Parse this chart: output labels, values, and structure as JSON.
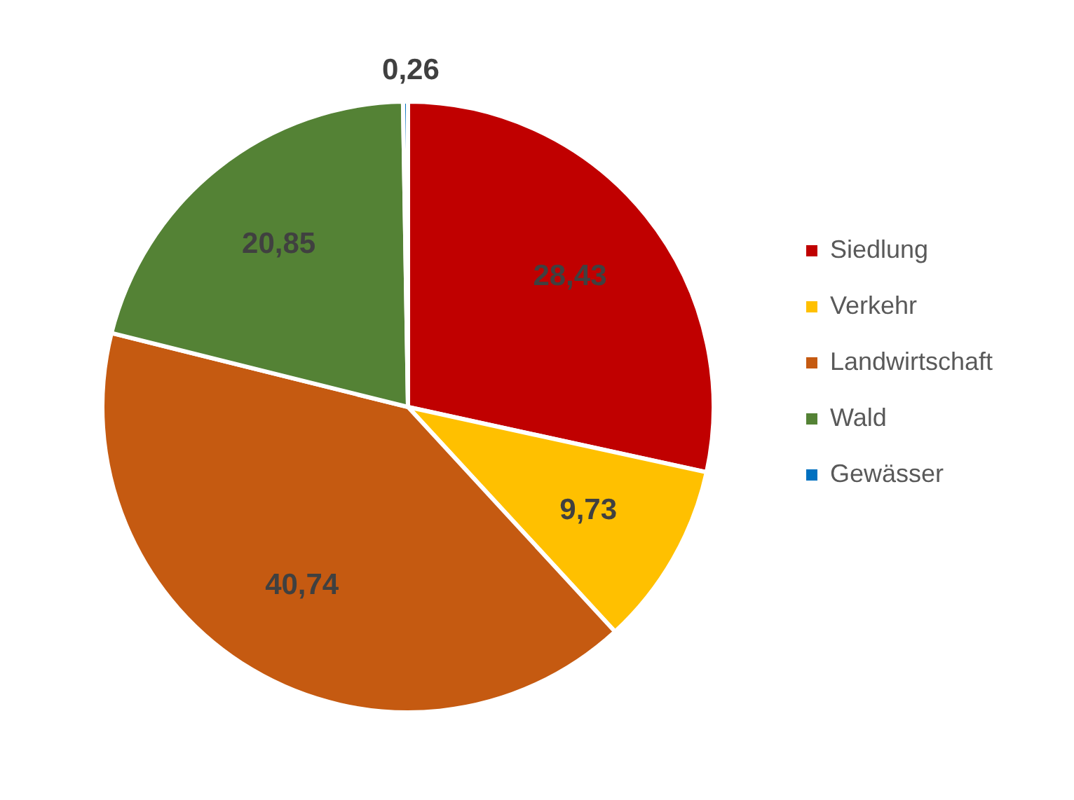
{
  "chart_data": {
    "type": "pie",
    "categories": [
      "Siedlung",
      "Verkehr",
      "Landwirtschaft",
      "Wald",
      "Gewässer"
    ],
    "values": [
      28.43,
      9.73,
      40.74,
      20.85,
      0.26
    ],
    "colors": [
      "#c00000",
      "#ffc000",
      "#c55a11",
      "#548235",
      "#0070c0"
    ],
    "value_labels": [
      "28,43",
      "9,73",
      "40,74",
      "20,85",
      "0,26"
    ],
    "legend": "right"
  }
}
